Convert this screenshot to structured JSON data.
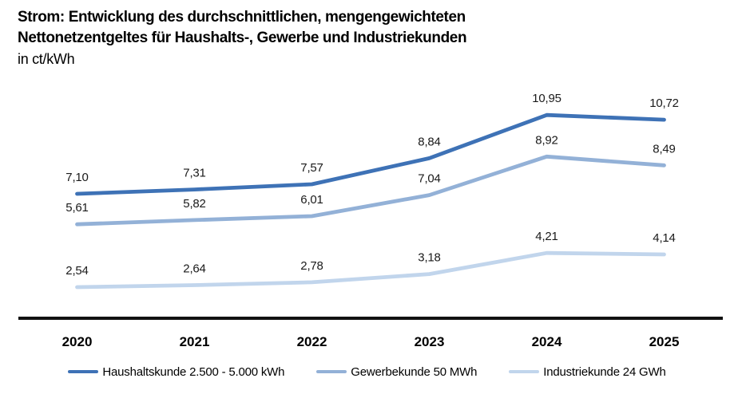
{
  "header": {
    "title_line1": "Strom: Entwicklung des durchschnittlichen, mengengewichteten",
    "title_line2": "Nettonetzentgeltes für Haushalts-, Gewerbe und Industriekunden",
    "unit": "in ct/kWh"
  },
  "chart_data": {
    "type": "line",
    "title": "Strom: Entwicklung des durchschnittlichen, mengengewichteten Nettonetzentgeltes für Haushalts-, Gewerbe und Industriekunden",
    "ylabel": "ct/kWh",
    "categories": [
      "2020",
      "2021",
      "2022",
      "2023",
      "2024",
      "2025"
    ],
    "series": [
      {
        "id": "haushaltskunde",
        "name": "Haushaltskunde 2.500 - 5.000 kWh",
        "color": "#3E72B6",
        "values": [
          7.1,
          7.31,
          7.57,
          8.84,
          10.95,
          10.72
        ],
        "labels": [
          "7,10",
          "7,31",
          "7,57",
          "8,84",
          "10,95",
          "10,72"
        ]
      },
      {
        "id": "gewerbekunde",
        "name": "Gewerbekunde 50 MWh",
        "color": "#93B1D7",
        "values": [
          5.61,
          5.82,
          6.01,
          7.04,
          8.92,
          8.49
        ],
        "labels": [
          "5,61",
          "5,82",
          "6,01",
          "7,04",
          "8,92",
          "8,49"
        ]
      },
      {
        "id": "industriekunde",
        "name": "Industriekunde 24 GWh",
        "color": "#C1D5EC",
        "values": [
          2.54,
          2.64,
          2.78,
          3.18,
          4.21,
          4.14
        ],
        "labels": [
          "2,54",
          "2,64",
          "2,78",
          "3,18",
          "4,21",
          "4,14"
        ]
      }
    ],
    "axis_color": "#111111",
    "label_color": "#1a1a1a",
    "grid": false,
    "legend_position": "bottom",
    "ylim": [
      1,
      12
    ]
  }
}
